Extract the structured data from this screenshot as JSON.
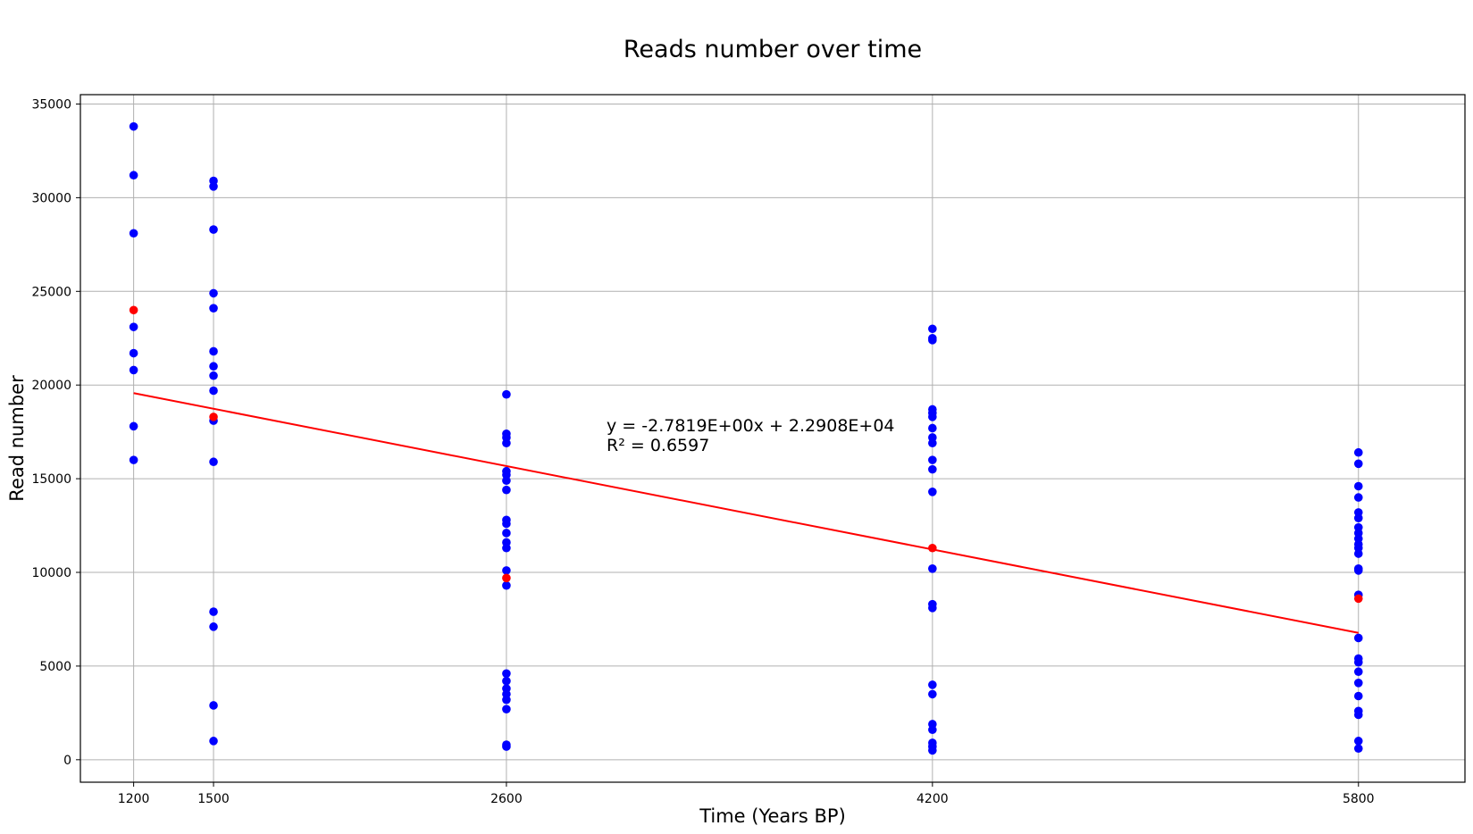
{
  "chart_data": {
    "type": "scatter",
    "title": "Reads number over time",
    "xlabel": "Time (Years BP)",
    "ylabel": "Read number",
    "xlim": [
      1000,
      6200
    ],
    "ylim": [
      -1200,
      35500
    ],
    "xticks": [
      1200,
      1500,
      2600,
      4200,
      5800
    ],
    "yticks": [
      0,
      5000,
      10000,
      15000,
      20000,
      25000,
      30000,
      35000
    ],
    "grid": true,
    "series": [
      {
        "color": "#0000ff",
        "points": [
          [
            1200,
            33800
          ],
          [
            1200,
            31200
          ],
          [
            1200,
            28100
          ],
          [
            1200,
            23100
          ],
          [
            1200,
            21700
          ],
          [
            1200,
            20800
          ],
          [
            1200,
            17800
          ],
          [
            1200,
            16000
          ],
          [
            1500,
            30900
          ],
          [
            1500,
            30600
          ],
          [
            1500,
            28300
          ],
          [
            1500,
            24900
          ],
          [
            1500,
            24100
          ],
          [
            1500,
            21800
          ],
          [
            1500,
            21000
          ],
          [
            1500,
            20500
          ],
          [
            1500,
            19700
          ],
          [
            1500,
            18100
          ],
          [
            1500,
            15900
          ],
          [
            1500,
            7900
          ],
          [
            1500,
            7100
          ],
          [
            1500,
            2900
          ],
          [
            1500,
            1000
          ],
          [
            2600,
            19500
          ],
          [
            2600,
            17400
          ],
          [
            2600,
            17200
          ],
          [
            2600,
            16900
          ],
          [
            2600,
            15400
          ],
          [
            2600,
            15200
          ],
          [
            2600,
            14900
          ],
          [
            2600,
            14400
          ],
          [
            2600,
            12800
          ],
          [
            2600,
            12600
          ],
          [
            2600,
            12100
          ],
          [
            2600,
            11600
          ],
          [
            2600,
            11300
          ],
          [
            2600,
            10100
          ],
          [
            2600,
            9300
          ],
          [
            2600,
            4600
          ],
          [
            2600,
            4200
          ],
          [
            2600,
            3800
          ],
          [
            2600,
            3500
          ],
          [
            2600,
            3200
          ],
          [
            2600,
            2700
          ],
          [
            2600,
            800
          ],
          [
            2600,
            700
          ],
          [
            4200,
            23000
          ],
          [
            4200,
            22500
          ],
          [
            4200,
            22400
          ],
          [
            4200,
            18700
          ],
          [
            4200,
            18500
          ],
          [
            4200,
            18300
          ],
          [
            4200,
            17700
          ],
          [
            4200,
            17200
          ],
          [
            4200,
            16900
          ],
          [
            4200,
            16000
          ],
          [
            4200,
            15500
          ],
          [
            4200,
            14300
          ],
          [
            4200,
            10200
          ],
          [
            4200,
            8300
          ],
          [
            4200,
            8100
          ],
          [
            4200,
            4000
          ],
          [
            4200,
            3500
          ],
          [
            4200,
            1900
          ],
          [
            4200,
            1600
          ],
          [
            4200,
            900
          ],
          [
            4200,
            700
          ],
          [
            4200,
            500
          ],
          [
            5800,
            16400
          ],
          [
            5800,
            15800
          ],
          [
            5800,
            14600
          ],
          [
            5800,
            14000
          ],
          [
            5800,
            13200
          ],
          [
            5800,
            12900
          ],
          [
            5800,
            12400
          ],
          [
            5800,
            12100
          ],
          [
            5800,
            11800
          ],
          [
            5800,
            11500
          ],
          [
            5800,
            11300
          ],
          [
            5800,
            11000
          ],
          [
            5800,
            10200
          ],
          [
            5800,
            10100
          ],
          [
            5800,
            8800
          ],
          [
            5800,
            6500
          ],
          [
            5800,
            5400
          ],
          [
            5800,
            5200
          ],
          [
            5800,
            4700
          ],
          [
            5800,
            4100
          ],
          [
            5800,
            3400
          ],
          [
            5800,
            2600
          ],
          [
            5800,
            2400
          ],
          [
            5800,
            1000
          ],
          [
            5800,
            600
          ]
        ]
      },
      {
        "color": "#ff0000",
        "points": [
          [
            1200,
            24000
          ],
          [
            1500,
            18300
          ],
          [
            2600,
            9700
          ],
          [
            4200,
            11300
          ],
          [
            5800,
            8600
          ]
        ]
      }
    ],
    "trendline": {
      "color": "#ff0000",
      "x_start": 1200,
      "x_end": 5800,
      "slope": -2.7819,
      "intercept": 22908
    },
    "annotation": {
      "line1": "y = -2.7819E+00x + 2.2908E+04",
      "line2": "R² = 0.6597"
    }
  }
}
